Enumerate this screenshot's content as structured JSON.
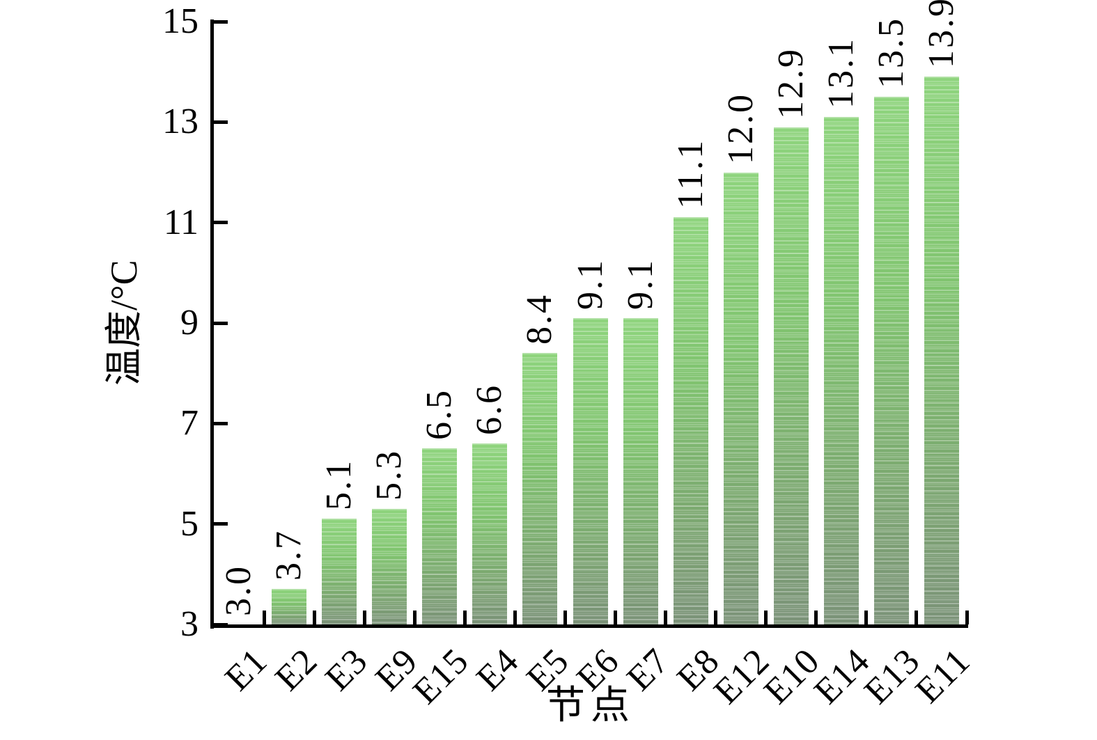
{
  "chart_data": {
    "type": "bar",
    "title": "",
    "xlabel": "节点",
    "ylabel": "温度/°C",
    "categories": [
      "E1",
      "E2",
      "E3",
      "E9",
      "E15",
      "E4",
      "E5",
      "E6",
      "E7",
      "E8",
      "E12",
      "E10",
      "E14",
      "E13",
      "E11"
    ],
    "values": [
      3.0,
      3.7,
      5.1,
      5.3,
      6.5,
      6.6,
      8.4,
      9.1,
      9.1,
      11.1,
      12.0,
      12.9,
      13.1,
      13.5,
      13.9
    ],
    "bar_labels": [
      "3.0",
      "3.7",
      "5.1",
      "5.3",
      "6.5",
      "6.6",
      "8.4",
      "9.1",
      "9.1",
      "11.1",
      "12.0",
      "12.9",
      "13.1",
      "13.5",
      "13.9"
    ],
    "ylim": [
      3,
      15
    ],
    "yticks": [
      3,
      5,
      7,
      9,
      11,
      13,
      15
    ],
    "grid": false,
    "legend": false,
    "bar_label_rotation": 90,
    "xtick_rotation": 45,
    "tick_direction": "in",
    "axis_color": "#000000",
    "background_color": "#ffffff",
    "bar_gradient": {
      "top": "#8ed47d",
      "upper_mid": "#80c46f",
      "lower_mid": "#7cab70",
      "bottom": "#7b9278"
    },
    "bar_texture": "light horizontal dashes"
  }
}
